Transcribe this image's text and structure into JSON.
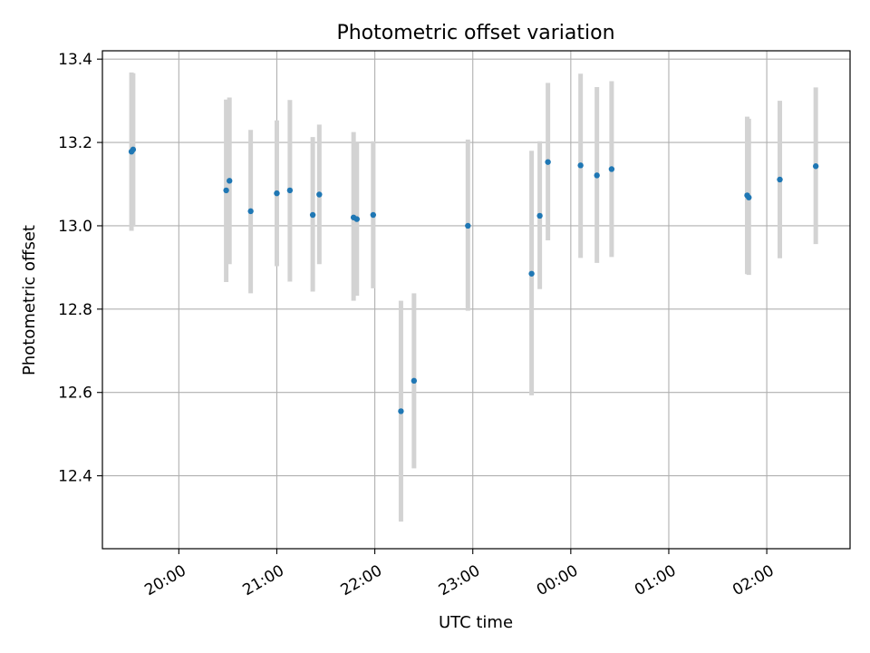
{
  "chart_data": {
    "type": "scatter",
    "title": "Photometric offset variation",
    "xlabel": "UTC time",
    "ylabel": "Photometric offset",
    "x_tick_labels": [
      "20:00",
      "21:00",
      "22:00",
      "23:00",
      "00:00",
      "01:00",
      "02:00"
    ],
    "x_tick_hours": [
      0,
      1,
      2,
      3,
      4,
      5,
      6
    ],
    "x_axis_origin": "20:00",
    "xlim_hours": [
      -0.78,
      6.85
    ],
    "ylim": [
      12.225,
      13.42
    ],
    "y_ticks": [
      12.4,
      12.6,
      12.8,
      13.0,
      13.2,
      13.4
    ],
    "y_tick_labels": [
      "12.4",
      "12.6",
      "12.8",
      "13.0",
      "13.2",
      "13.4"
    ],
    "grid": true,
    "marker_color": "#1f77b4",
    "errorbar_color": "#d3d3d3",
    "points": [
      {
        "t": "19:31",
        "y": 13.178,
        "lo": 12.988,
        "hi": 13.368
      },
      {
        "t": "19:32",
        "y": 13.183,
        "lo": 12.998,
        "hi": 13.366
      },
      {
        "t": "20:29",
        "y": 13.085,
        "lo": 12.865,
        "hi": 13.303
      },
      {
        "t": "20:31",
        "y": 13.108,
        "lo": 12.908,
        "hi": 13.308
      },
      {
        "t": "20:44",
        "y": 13.035,
        "lo": 12.838,
        "hi": 13.23
      },
      {
        "t": "21:00",
        "y": 13.078,
        "lo": 12.903,
        "hi": 13.253
      },
      {
        "t": "21:08",
        "y": 13.085,
        "lo": 12.866,
        "hi": 13.302
      },
      {
        "t": "21:22",
        "y": 13.026,
        "lo": 12.842,
        "hi": 13.213
      },
      {
        "t": "21:26",
        "y": 13.075,
        "lo": 12.908,
        "hi": 13.243
      },
      {
        "t": "21:47",
        "y": 13.02,
        "lo": 12.82,
        "hi": 13.225
      },
      {
        "t": "21:49",
        "y": 13.016,
        "lo": 12.832,
        "hi": 13.198
      },
      {
        "t": "21:59",
        "y": 13.026,
        "lo": 12.85,
        "hi": 13.203
      },
      {
        "t": "22:16",
        "y": 12.555,
        "lo": 12.29,
        "hi": 12.82
      },
      {
        "t": "22:24",
        "y": 12.628,
        "lo": 12.418,
        "hi": 12.838
      },
      {
        "t": "22:57",
        "y": 13.0,
        "lo": 12.796,
        "hi": 13.207
      },
      {
        "t": "23:36",
        "y": 12.885,
        "lo": 12.593,
        "hi": 13.18
      },
      {
        "t": "23:41",
        "y": 13.024,
        "lo": 12.848,
        "hi": 13.203
      },
      {
        "t": "23:46",
        "y": 13.153,
        "lo": 12.965,
        "hi": 13.343
      },
      {
        "t": "00:06",
        "y": 13.145,
        "lo": 12.923,
        "hi": 13.365
      },
      {
        "t": "00:16",
        "y": 13.121,
        "lo": 12.911,
        "hi": 13.333
      },
      {
        "t": "00:25",
        "y": 13.136,
        "lo": 12.925,
        "hi": 13.347
      },
      {
        "t": "01:48",
        "y": 13.073,
        "lo": 12.884,
        "hi": 13.262
      },
      {
        "t": "01:49",
        "y": 13.068,
        "lo": 12.882,
        "hi": 13.257
      },
      {
        "t": "02:08",
        "y": 13.111,
        "lo": 12.922,
        "hi": 13.3
      },
      {
        "t": "02:30",
        "y": 13.143,
        "lo": 12.956,
        "hi": 13.332
      }
    ]
  }
}
